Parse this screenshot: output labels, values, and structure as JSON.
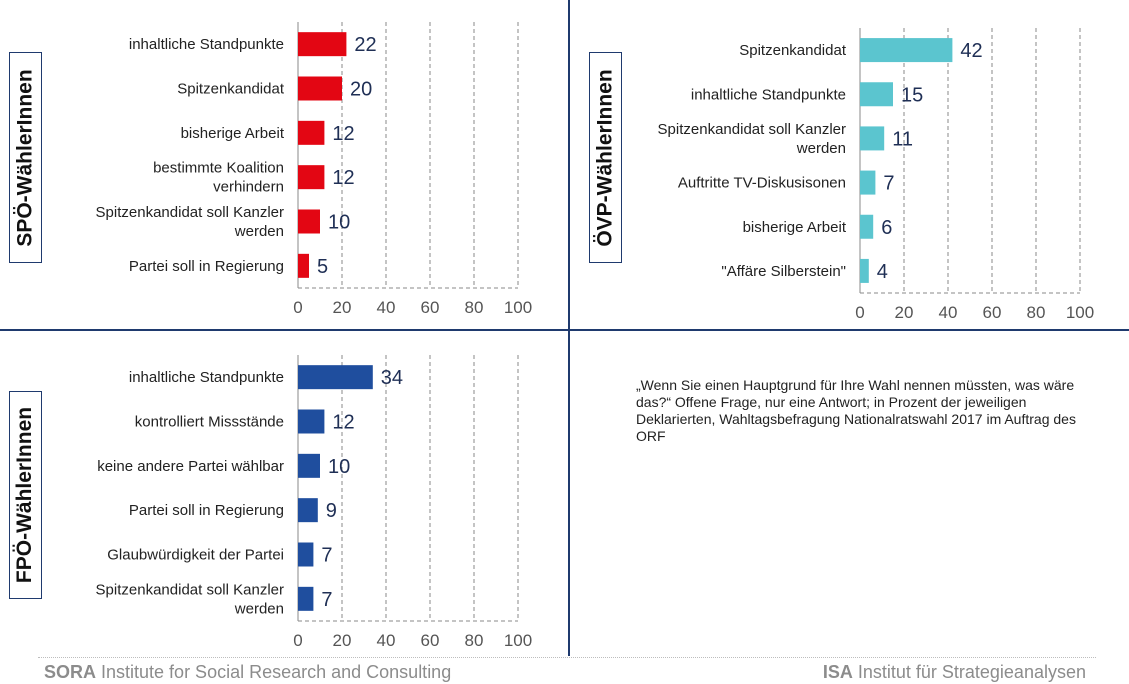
{
  "chart_data": [
    {
      "type": "bar",
      "orientation": "horizontal",
      "panel_label": "SPÖ-WählerInnen",
      "color": "#e30613",
      "categories": [
        "inhaltliche Standpunkte",
        "Spitzenkandidat",
        "bisherige Arbeit",
        "bestimmte Koalition verhindern",
        "Spitzenkandidat soll Kanzler werden",
        "Partei soll in Regierung"
      ],
      "category_lines": [
        [
          "inhaltliche Standpunkte"
        ],
        [
          "Spitzenkandidat"
        ],
        [
          "bisherige Arbeit"
        ],
        [
          "bestimmte Koalition",
          "verhindern"
        ],
        [
          "Spitzenkandidat soll Kanzler",
          "werden"
        ],
        [
          "Partei soll in Regierung"
        ]
      ],
      "values": [
        22,
        20,
        12,
        12,
        10,
        5
      ],
      "xlim": [
        0,
        100
      ],
      "xticks": [
        0,
        20,
        40,
        60,
        80,
        100
      ],
      "grid": "vertical dashed"
    },
    {
      "type": "bar",
      "orientation": "horizontal",
      "panel_label": "ÖVP-WählerInnen",
      "color": "#5bc5cf",
      "categories": [
        "Spitzenkandidat",
        "inhaltliche Standpunkte",
        "Spitzenkandidat soll Kanzler werden",
        "Auftritte TV-Diskusisonen",
        "bisherige Arbeit",
        "\"Affäre Silberstein\""
      ],
      "category_lines": [
        [
          "Spitzenkandidat"
        ],
        [
          "inhaltliche Standpunkte"
        ],
        [
          "Spitzenkandidat soll Kanzler",
          "werden"
        ],
        [
          "Auftritte TV-Diskusisonen"
        ],
        [
          "bisherige Arbeit"
        ],
        [
          "\"Affäre Silberstein\""
        ]
      ],
      "values": [
        42,
        15,
        11,
        7,
        6,
        4
      ],
      "xlim": [
        0,
        100
      ],
      "xticks": [
        0,
        20,
        40,
        60,
        80,
        100
      ],
      "grid": "vertical dashed"
    },
    {
      "type": "bar",
      "orientation": "horizontal",
      "panel_label": "FPÖ-WählerInnen",
      "color": "#1f4e9e",
      "categories": [
        "inhaltliche Standpunkte",
        "kontrolliert Missstände",
        "keine andere Partei wählbar",
        "Partei soll in Regierung",
        "Glaubwürdigkeit der Partei",
        "Spitzenkandidat soll Kanzler werden"
      ],
      "category_lines": [
        [
          "inhaltliche Standpunkte"
        ],
        [
          "kontrolliert Missstände"
        ],
        [
          "keine andere Partei wählbar"
        ],
        [
          "Partei soll in Regierung"
        ],
        [
          "Glaubwürdigkeit der Partei"
        ],
        [
          "Spitzenkandidat soll Kanzler",
          "werden"
        ]
      ],
      "values": [
        34,
        12,
        10,
        9,
        7,
        7
      ],
      "xlim": [
        0,
        100
      ],
      "xticks": [
        0,
        20,
        40,
        60,
        80,
        100
      ],
      "grid": "vertical dashed"
    }
  ],
  "note": "„Wenn Sie einen Hauptgrund für Ihre Wahl nennen müssten, was wäre das?“ Offene Frage, nur eine Antwort; in Prozent der jeweiligen Deklarierten, Wahltagsbefragung Nationalratswahl 2017 im Auftrag des ORF",
  "footer": {
    "left_bold": "SORA",
    "left_text": " Institute for Social Research and Consulting",
    "right_bold": "ISA",
    "right_text": " Institut für Strategieanalysen"
  }
}
